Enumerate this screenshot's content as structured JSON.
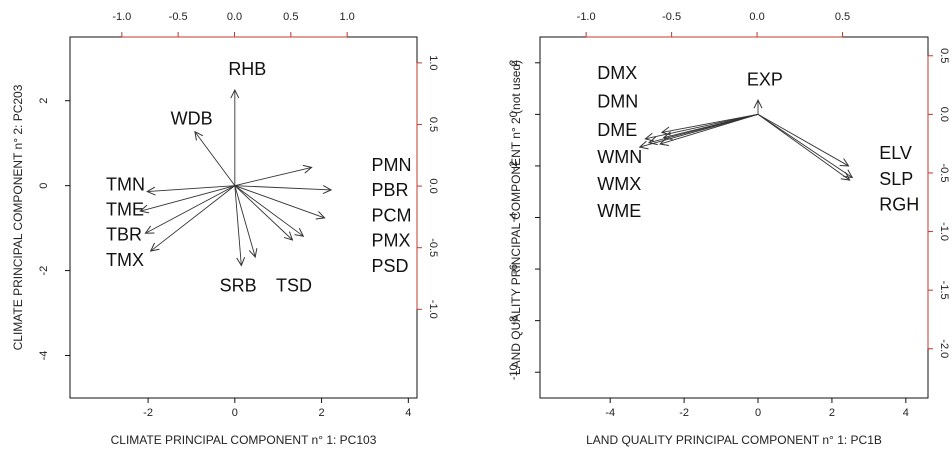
{
  "chart_data": [
    {
      "type": "biplot",
      "xlabel": "CLIMATE PRINCIPAL COMPONENT n° 1: PC103",
      "ylabel": "CLIMATE PRINCIPAL COMPONENT n° 2: PC203",
      "xlim": [
        -3.8,
        4.2
      ],
      "ylim": [
        -5.0,
        3.5
      ],
      "top_xlim": [
        -1.46,
        1.62
      ],
      "right_ylim": [
        -1.72,
        1.21
      ],
      "x_ticks": [
        "-2",
        "0",
        "2",
        "4"
      ],
      "x_tick_values": [
        -2,
        0,
        2,
        4
      ],
      "y_ticks": [
        "-4",
        "-2",
        "0",
        "2"
      ],
      "y_tick_values": [
        -4,
        -2,
        0,
        2
      ],
      "top_ticks": [
        "-1.0",
        "-0.5",
        "0.0",
        "0.5",
        "1.0"
      ],
      "top_tick_values": [
        -1.0,
        -0.5,
        0.0,
        0.5,
        1.0
      ],
      "right_ticks": [
        "-1.0",
        "-0.5",
        "0.0",
        "0.5",
        "1.0"
      ],
      "right_tick_values": [
        -1.0,
        -0.5,
        0.0,
        0.5,
        1.0
      ],
      "arrows": [
        {
          "x": 0.0,
          "y": 2.25
        },
        {
          "x": -0.92,
          "y": 1.27
        },
        {
          "x": 1.77,
          "y": 0.43
        },
        {
          "x": 2.22,
          "y": -0.1
        },
        {
          "x": 2.07,
          "y": -0.76
        },
        {
          "x": 1.58,
          "y": -1.19
        },
        {
          "x": 1.33,
          "y": -1.28
        },
        {
          "x": 0.47,
          "y": -1.68
        },
        {
          "x": 0.15,
          "y": -1.88
        },
        {
          "x": -1.94,
          "y": -1.54
        },
        {
          "x": -2.06,
          "y": -1.12
        },
        {
          "x": -2.18,
          "y": -0.6
        },
        {
          "x": -2.02,
          "y": -0.14
        }
      ],
      "labels": [
        {
          "text": "RHB",
          "x": -0.15,
          "y": 2.72
        },
        {
          "text": "WDB",
          "x": -1.48,
          "y": 1.55
        },
        {
          "text": "PMN",
          "x": 3.15,
          "y": 0.46
        },
        {
          "text": "PBR",
          "x": 3.15,
          "y": -0.13
        },
        {
          "text": "PCM",
          "x": 3.15,
          "y": -0.73
        },
        {
          "text": "PMX",
          "x": 3.15,
          "y": -1.32
        },
        {
          "text": "PSD",
          "x": 3.15,
          "y": -1.92
        },
        {
          "text": "TMN",
          "x": -2.97,
          "y": 0.0
        },
        {
          "text": "TME",
          "x": -2.97,
          "y": -0.59
        },
        {
          "text": "TBR",
          "x": -2.97,
          "y": -1.18
        },
        {
          "text": "TMX",
          "x": -2.97,
          "y": -1.78
        },
        {
          "text": "SRB",
          "x": -0.35,
          "y": -2.38
        },
        {
          "text": "TSD",
          "x": 0.95,
          "y": -2.38
        }
      ]
    },
    {
      "type": "biplot",
      "xlabel": "LAND QUALITY PRINCIPAL COMPONENT n° 1: PC1B",
      "ylabel": "LAND QUALITY  PRINCIPAL COMPONENT n° 2 (not used)",
      "xlim": [
        -5.9,
        4.6
      ],
      "ylim": [
        -11.0,
        3.0
      ],
      "top_xlim": [
        -1.27,
        1.0
      ],
      "right_ylim": [
        -2.42,
        0.66
      ],
      "x_ticks": [
        "-4",
        "-2",
        "0",
        "2",
        "4"
      ],
      "x_tick_values": [
        -4,
        -2,
        0,
        2,
        4
      ],
      "y_ticks": [
        "-10",
        "-8",
        "-6",
        "-4",
        "-2",
        "0",
        "2"
      ],
      "y_tick_values": [
        -10,
        -8,
        -6,
        -4,
        -2,
        0,
        2
      ],
      "top_ticks": [
        "-1.0",
        "-0.5",
        "0.0",
        "0.5"
      ],
      "top_tick_values": [
        -1.0,
        -0.5,
        0.0,
        0.5
      ],
      "right_ticks": [
        "-2.0",
        "-1.5",
        "-1.0",
        "-0.5",
        "0.0",
        "0.5"
      ],
      "right_tick_values": [
        -2.0,
        -1.5,
        -1.0,
        -0.5,
        0.0,
        0.5
      ],
      "arrows": [
        {
          "x": 0.0,
          "y": 0.55
        },
        {
          "x": -3.05,
          "y": -0.95
        },
        {
          "x": -2.95,
          "y": -1.1
        },
        {
          "x": -3.2,
          "y": -1.27
        },
        {
          "x": -2.6,
          "y": -0.7
        },
        {
          "x": -2.55,
          "y": -0.9
        },
        {
          "x": -2.65,
          "y": -1.15
        },
        {
          "x": 2.45,
          "y": -2.0
        },
        {
          "x": 2.55,
          "y": -2.45
        },
        {
          "x": 2.48,
          "y": -2.55
        }
      ],
      "labels": [
        {
          "text": "EXP",
          "x": -0.3,
          "y": 1.3
        },
        {
          "text": "DMX",
          "x": -4.35,
          "y": 1.55
        },
        {
          "text": "DMN",
          "x": -4.35,
          "y": 0.45
        },
        {
          "text": "DME",
          "x": -4.35,
          "y": -0.65
        },
        {
          "text": "WMN",
          "x": -4.35,
          "y": -1.7
        },
        {
          "text": "WMX",
          "x": -4.35,
          "y": -2.75
        },
        {
          "text": "WME",
          "x": -4.35,
          "y": -3.8
        },
        {
          "text": "ELV",
          "x": 3.28,
          "y": -1.55
        },
        {
          "text": "SLP",
          "x": 3.28,
          "y": -2.55
        },
        {
          "text": "RGH",
          "x": 3.28,
          "y": -3.55
        }
      ]
    }
  ]
}
